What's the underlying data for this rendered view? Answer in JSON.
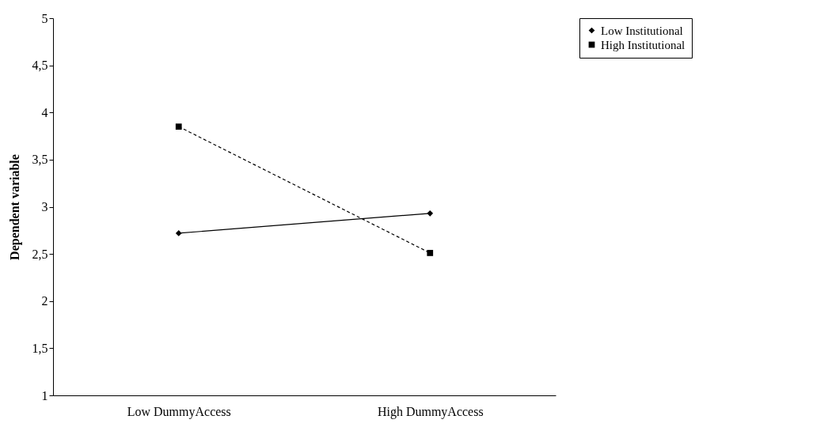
{
  "chart_data": {
    "type": "line",
    "ylabel": "Dependent variable",
    "categories": [
      "Low DummyAccess",
      "High DummyAccess"
    ],
    "series": [
      {
        "name": "Low Institutional",
        "color": "#000000",
        "values": [
          2.72,
          2.93
        ],
        "marker": "diamond",
        "line_style": "solid"
      },
      {
        "name": "High Institutional",
        "color": "#000000",
        "values": [
          3.85,
          2.51
        ],
        "marker": "square",
        "line_style": "dashed"
      }
    ],
    "ylim": [
      1,
      5
    ],
    "yticks": [
      1,
      {
        "value": 1.5,
        "label": "1,5"
      },
      2,
      {
        "value": 2.5,
        "label": "2,5"
      },
      3,
      {
        "value": 3.5,
        "label": "3,5"
      },
      4,
      {
        "value": 4.5,
        "label": "4,5"
      },
      5
    ],
    "grid": false,
    "legend": "right"
  }
}
